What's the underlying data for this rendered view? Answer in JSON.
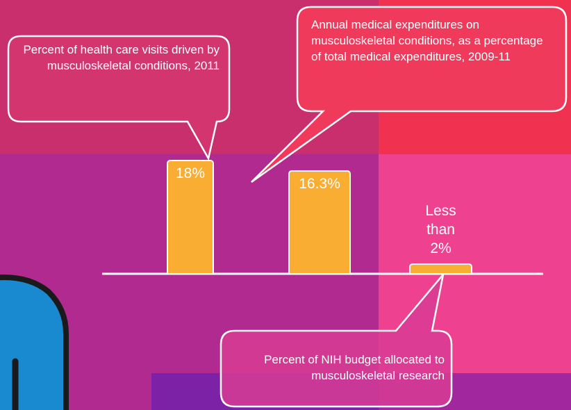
{
  "chart_data": {
    "type": "bar",
    "categories": [
      null,
      null,
      null
    ],
    "values": [
      18,
      16.3,
      1.6
    ],
    "value_labels": [
      "18%",
      "16.3%",
      "Less than 2%"
    ],
    "color": "#f9ad32",
    "annotations": [
      "Percent of health care visits driven by musculoskeletal conditions, 2011",
      "Annual medical expenditures on musculoskeletal conditions, as a percentage of total medical expenditures, 2009-11",
      "Percent of NIH budget allocated to musculoskeletal research"
    ]
  }
}
